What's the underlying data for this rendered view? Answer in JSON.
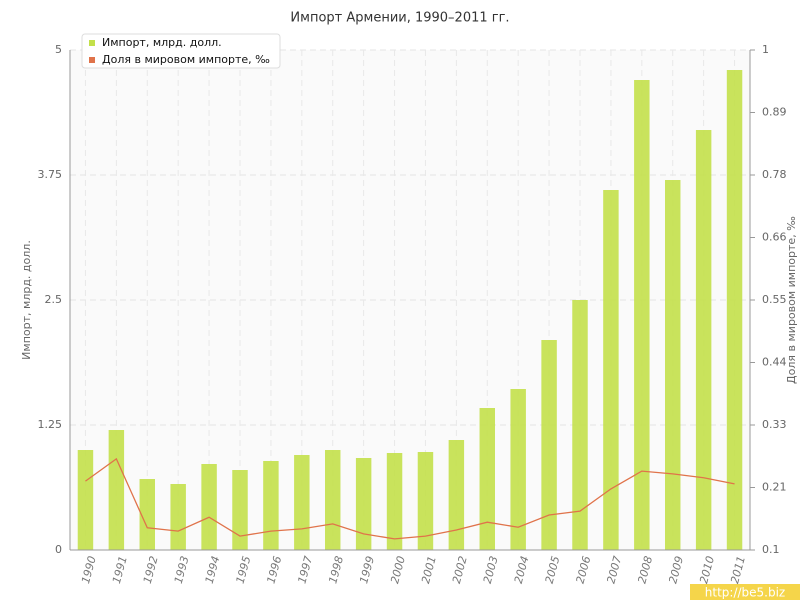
{
  "chart_data": {
    "type": "bar",
    "title": "Импорт Армении, 1990–2011 гг.",
    "y_label": "Импорт, млрд. долл.",
    "y2_label": "Доля в мировом импорте, ‰",
    "categories": [
      "1990",
      "1991",
      "1992",
      "1993",
      "1994",
      "1995",
      "1996",
      "1997",
      "1998",
      "1999",
      "2000",
      "2001",
      "2002",
      "2003",
      "2004",
      "2005",
      "2006",
      "2007",
      "2008",
      "2009",
      "2010",
      "2011"
    ],
    "series": [
      {
        "name": "Импорт, млрд. долл.",
        "type": "bar",
        "color": "#c3e04a",
        "values": [
          1.0,
          1.2,
          0.71,
          0.66,
          0.86,
          0.8,
          0.89,
          0.95,
          1.0,
          0.92,
          0.97,
          0.98,
          1.1,
          1.42,
          1.61,
          2.1,
          2.5,
          3.6,
          4.7,
          3.7,
          4.2,
          4.8
        ]
      },
      {
        "name": "Доля в мировом импорте, ‰",
        "type": "line",
        "axis": "y2",
        "color": "#e0734a",
        "values": [
          0.224,
          0.264,
          0.14,
          0.134,
          0.159,
          0.125,
          0.134,
          0.138,
          0.147,
          0.129,
          0.12,
          0.125,
          0.136,
          0.15,
          0.141,
          0.163,
          0.17,
          0.21,
          0.242,
          0.237,
          0.23,
          0.219
        ]
      }
    ],
    "ylim": [
      0,
      5
    ],
    "yticks": [
      0,
      1.25,
      2.5,
      3.75,
      5
    ],
    "y2lim": [
      0.1,
      1
    ],
    "y2ticks": [
      0.1,
      {
        "value": 0.2125,
        "label": "0.21"
      },
      {
        "value": 0.325,
        "label": "0.33"
      },
      {
        "value": 0.4375,
        "label": "0.44"
      },
      0.55,
      {
        "value": 0.6625,
        "label": "0.66"
      },
      {
        "value": 0.775,
        "label": "0.78"
      },
      {
        "value": 0.8875,
        "label": "0.89"
      },
      1
    ],
    "grid": true,
    "legend": "top-left",
    "watermark": "http://be5.biz"
  }
}
